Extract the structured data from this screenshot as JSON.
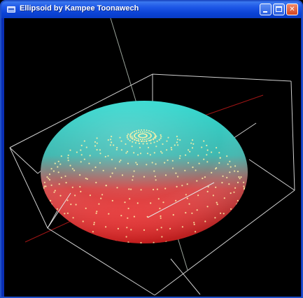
{
  "window": {
    "title": "Ellipsoid by Kampee Toonawech"
  },
  "window_controls": {
    "minimize": "minimize",
    "maximize": "maximize",
    "close": "close"
  },
  "colors": {
    "titlebar": "#1c56e6",
    "background": "#000000",
    "ellipsoid_top": "#2fd9d0",
    "ellipsoid_bottom": "#ff2626",
    "wireframe": "#cfcfcf",
    "axis_red": "#b01818",
    "point_highlight": "#fff2a8"
  },
  "scene": {
    "object": "ellipsoid",
    "bounding_box": "wireframe cube",
    "rendering": "point-sampled surface"
  }
}
